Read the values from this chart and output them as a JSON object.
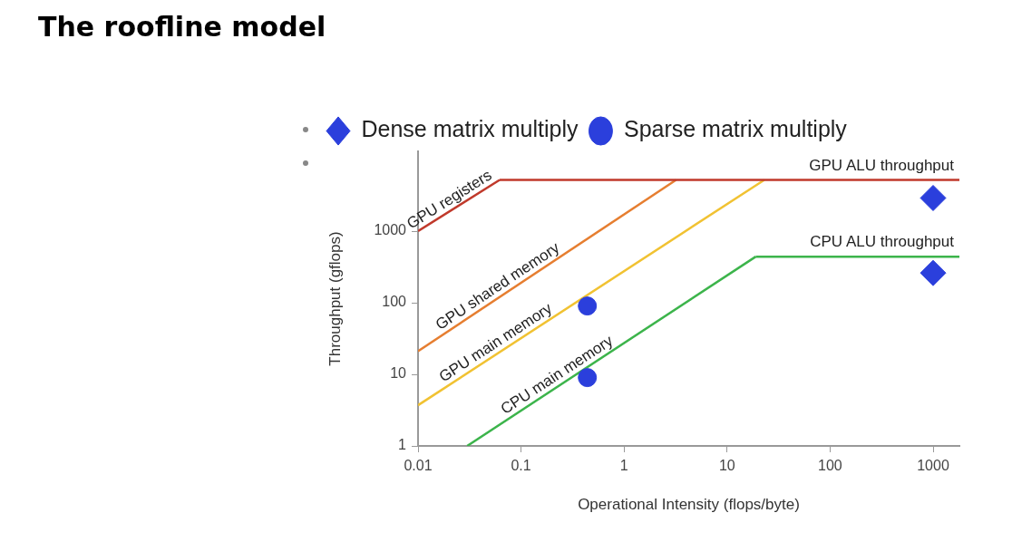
{
  "chart_data": {
    "type": "line",
    "title": "The roofline model",
    "xlabel": "Operational Intensity (flops/byte)",
    "ylabel": "Throughput (gflops)",
    "log": "xy",
    "xlim": [
      0.01,
      1800
    ],
    "ylim": [
      1,
      13000
    ],
    "xticks": [
      0.01,
      0.1,
      1,
      10,
      100,
      1000
    ],
    "yticks": [
      1,
      10,
      100,
      1000
    ],
    "grid": false,
    "legend": "top left",
    "series": [
      {
        "name": "Dense matrix multiply",
        "type": "scatter",
        "marker": "diamond",
        "color": "#2b3fdc",
        "x": [
          1000,
          1000
        ],
        "values": [
          2900,
          260
        ]
      },
      {
        "name": "Sparse matrix multiply",
        "type": "scatter",
        "marker": "circle",
        "color": "#2b3fdc",
        "x": [
          0.44,
          0.44
        ],
        "values": [
          90,
          9
        ]
      },
      {
        "name": "GPU registers",
        "color": "#c0392b",
        "x": [
          0.01,
          0.062
        ],
        "values": [
          1000,
          5200
        ]
      },
      {
        "name": "GPU ALU throughput",
        "color": "#c0392b",
        "x": [
          0.062,
          1800
        ],
        "values": [
          5200,
          5200
        ]
      },
      {
        "name": "GPU shared memory",
        "color": "#e67e30",
        "x": [
          0.01,
          3.2
        ],
        "values": [
          21,
          5200
        ]
      },
      {
        "name": "GPU main memory",
        "color": "#f1c232",
        "x": [
          0.01,
          23
        ],
        "values": [
          3.7,
          5200
        ]
      },
      {
        "name": "CPU main memory",
        "color": "#3cb44b",
        "x": [
          0.03,
          19
        ],
        "values": [
          1,
          440
        ]
      },
      {
        "name": "CPU ALU throughput",
        "color": "#3cb44b",
        "x": [
          19,
          1800
        ],
        "values": [
          440,
          440
        ]
      }
    ]
  }
}
